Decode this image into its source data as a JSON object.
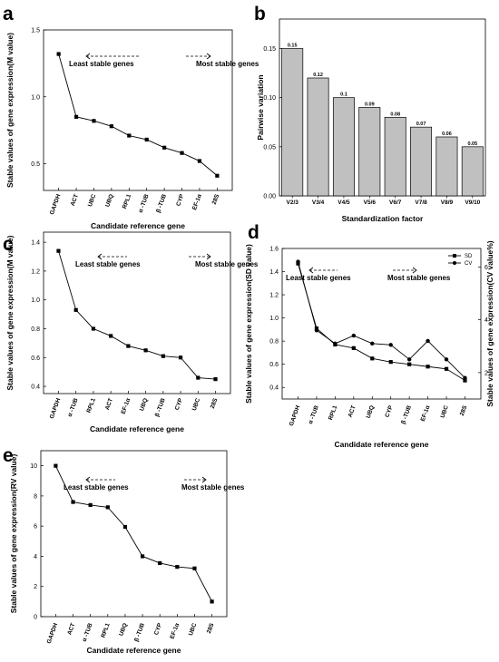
{
  "chart_data": [
    {
      "panel": "a",
      "type": "line",
      "xlabel": "Candidate reference gene",
      "ylabel": "Stable values of gene expression(M value)",
      "categories": [
        "GAPDH",
        "ACT",
        "UBC",
        "UBQ",
        "RPL1",
        "α -TUB",
        "β -TUB",
        "CYP",
        "EF-1α",
        "28S"
      ],
      "values": [
        1.32,
        0.85,
        0.82,
        0.78,
        0.71,
        0.68,
        0.62,
        0.58,
        0.52,
        0.41
      ],
      "ylim": [
        0.3,
        1.5
      ],
      "yticks": [
        "0.5",
        "1.0",
        "1.5"
      ],
      "annotations": [
        "Least stable genes",
        "Most stable genes"
      ]
    },
    {
      "panel": "b",
      "type": "bar",
      "xlabel": "Standardization factor",
      "ylabel": "Pairwise variation",
      "categories": [
        "V2/3",
        "V3/4",
        "V4/5",
        "V5/6",
        "V6/7",
        "V7/8",
        "V8/9",
        "V9/10"
      ],
      "values": [
        0.15,
        0.12,
        0.1,
        0.09,
        0.08,
        0.07,
        0.06,
        0.05
      ],
      "labels": [
        "0.15",
        "0.12",
        "0.1",
        "0.09",
        "0.08",
        "0.07",
        "0.06",
        "0.05"
      ],
      "ylim": [
        0,
        0.18
      ],
      "yticks": [
        "0.00",
        "0.05",
        "0.10",
        "0.15"
      ],
      "bar_color": "#c0c0c0"
    },
    {
      "panel": "c",
      "type": "line",
      "xlabel": "Candidate reference gene",
      "ylabel": "Stable values of gene expression(M value)",
      "categories": [
        "GAPDH",
        "α -TUB",
        "RPL1",
        "ACT",
        "EF-1α",
        "UBQ",
        "β -TUB",
        "CYP",
        "UBC",
        "28S"
      ],
      "values": [
        1.34,
        0.93,
        0.8,
        0.75,
        0.68,
        0.65,
        0.61,
        0.6,
        0.46,
        0.45
      ],
      "ylim": [
        0.35,
        1.47
      ],
      "yticks": [
        "0.4",
        "0.6",
        "0.8",
        "1.0",
        "1.2",
        "1.4"
      ],
      "annotations": [
        "Least stable genes",
        "Most stable genes"
      ]
    },
    {
      "panel": "d",
      "type": "line",
      "xlabel": "Candidate reference gene",
      "ylabel": "Stable values of gene expression(SD value)",
      "ylabel_right": "Stable values of gene expression(CV value%)",
      "categories": [
        "GAPDH",
        "α -TUB",
        "RPL1",
        "ACT",
        "UBQ",
        "CYP",
        "β -TUB",
        "EF-1α",
        "UBC",
        "28S"
      ],
      "series": [
        {
          "name": "SD",
          "axis": "left",
          "values": [
            1.47,
            0.91,
            0.77,
            0.74,
            0.65,
            0.62,
            0.6,
            0.58,
            0.56,
            0.46
          ]
        },
        {
          "name": "CV",
          "axis": "right",
          "values": [
            6.2,
            3.6,
            3.1,
            3.4,
            3.1,
            3.05,
            2.5,
            3.2,
            2.5,
            1.8
          ]
        }
      ],
      "ylim": [
        0.3,
        1.6
      ],
      "ylim_right": [
        1.0,
        6.7
      ],
      "yticks": [
        "0.4",
        "0.6",
        "0.8",
        "1.0",
        "1.2",
        "1.4",
        "1.6"
      ],
      "yticks_right": [
        "2",
        "4",
        "6"
      ],
      "legend": "top-right",
      "annotations": [
        "Least stable genes",
        "Most stable genes"
      ]
    },
    {
      "panel": "e",
      "type": "line",
      "xlabel": "Candidate reference gene",
      "ylabel": "Stable values of gene expression(RV value)",
      "categories": [
        "GAPDH",
        "ACT",
        "α -TUB",
        "RPL1",
        "UBQ",
        "β -TUB",
        "CYP",
        "EF-1α",
        "UBC",
        "28S"
      ],
      "values": [
        10.0,
        7.6,
        7.4,
        7.25,
        5.95,
        4.0,
        3.55,
        3.3,
        3.2,
        1.0
      ],
      "ylim": [
        0,
        11
      ],
      "yticks": [
        "0",
        "2",
        "4",
        "6",
        "8",
        "10"
      ],
      "annotations": [
        "Least stable genes",
        "Most stable genes"
      ]
    }
  ]
}
